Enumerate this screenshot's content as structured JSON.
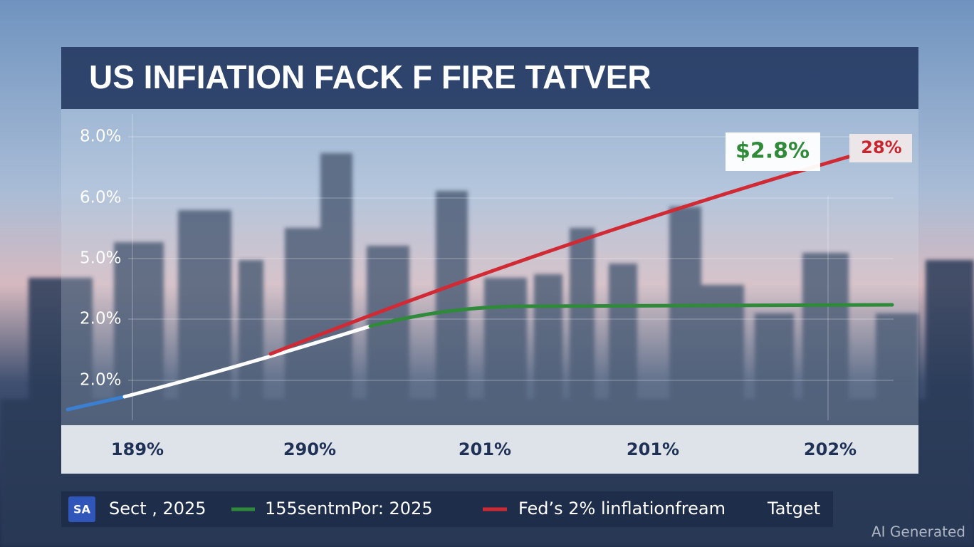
{
  "title": "US INFIATION FACK F FIRE TATVER",
  "y_labels": [
    "8.0%",
    "6.0%",
    "5.0%",
    "2.0%",
    "2.0%"
  ],
  "x_labels": [
    "189%",
    "290%",
    "201%",
    "201%",
    "202%"
  ],
  "callouts": [
    "$2.8%",
    "28%"
  ],
  "legend": [
    "Sect , 2025",
    "155sentmPor: 2025",
    "Fed’s 2% linflationfream",
    "Tatget"
  ],
  "watermark": "AI Generated"
}
